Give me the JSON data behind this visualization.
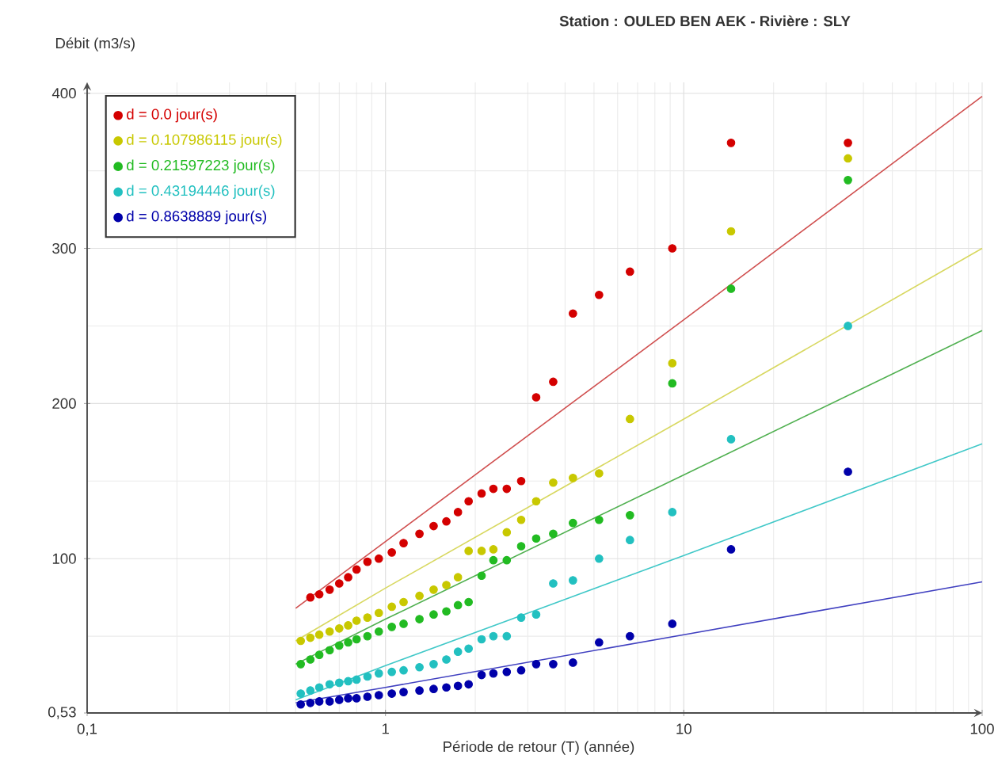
{
  "chart_data": {
    "type": "scatter",
    "title": "Station : OULED BEN AEK - Rivière : SLY",
    "xlabel": "Période de retour (T) (année)",
    "ylabel": "Débit (m3/s)",
    "log": "x",
    "xlim": [
      0.1,
      100
    ],
    "ylim": [
      0.53,
      407
    ],
    "xticks": [
      {
        "value": 0.1,
        "label": "0,1"
      },
      1,
      10,
      100
    ],
    "yticks": [
      {
        "value": 0.53,
        "label": "0,53"
      },
      100,
      200,
      300,
      400
    ],
    "grid": true,
    "legend": "top left",
    "marker": "circle",
    "x": [
      0.52,
      0.56,
      0.6,
      0.65,
      0.7,
      0.75,
      0.8,
      0.87,
      0.95,
      1.05,
      1.15,
      1.3,
      1.45,
      1.6,
      1.75,
      1.9,
      2.1,
      2.3,
      2.55,
      2.85,
      3.2,
      3.65,
      4.25,
      5.2,
      6.6,
      9.15,
      14.4,
      35.5
    ],
    "series": [
      {
        "name": "d = 0.0 jour(s)",
        "color": "#d40000",
        "values": [
          null,
          75,
          77,
          80,
          84,
          88,
          93,
          98,
          100,
          104,
          110,
          116,
          121,
          124,
          130,
          137,
          142,
          145,
          145,
          150,
          204,
          214,
          258,
          270,
          285,
          300,
          368,
          368
        ]
      },
      {
        "name": "d = 0.107986115 jour(s)",
        "color": "#c8c800",
        "values": [
          47,
          49,
          51,
          53,
          55,
          57,
          60,
          62,
          65,
          69,
          72,
          76,
          80,
          83,
          88,
          105,
          105,
          106,
          117,
          125,
          137,
          149,
          152,
          155,
          190,
          226,
          311,
          358
        ]
      },
      {
        "name": "d = 0.21597223 jour(s)",
        "color": "#22bb22",
        "values": [
          32,
          35,
          38,
          41,
          44,
          46,
          48,
          50,
          53,
          56,
          58,
          61,
          64,
          66,
          70,
          72,
          89,
          99,
          99,
          108,
          113,
          116,
          123,
          125,
          128,
          213,
          274,
          344
        ]
      },
      {
        "name": "d = 0.43194446 jour(s)",
        "color": "#22c0c0",
        "values": [
          13,
          15,
          17,
          19,
          20,
          21,
          22,
          24,
          26,
          27,
          28,
          30,
          32,
          35,
          40,
          42,
          48,
          50,
          50,
          62,
          64,
          84,
          86,
          100,
          112,
          130,
          177,
          250
        ]
      },
      {
        "name": "d = 0.8638889 jour(s)",
        "color": "#0000aa",
        "values": [
          6,
          7,
          8,
          8,
          9,
          10,
          10,
          11,
          12,
          13,
          14,
          15,
          16,
          17,
          18,
          19,
          25,
          26,
          27,
          28,
          32,
          32,
          33,
          46,
          50,
          58,
          106,
          156
        ]
      },
      {
        "type": "line",
        "marker": "none",
        "color": "#d05050",
        "x": [
          0.5,
          1,
          10,
          100
        ],
        "values": [
          68,
          111,
          254,
          398
        ]
      },
      {
        "type": "line",
        "marker": "none",
        "color": "#d8d860",
        "x": [
          0.5,
          1,
          10,
          100
        ],
        "values": [
          47,
          81,
          190,
          300
        ]
      },
      {
        "type": "line",
        "marker": "none",
        "color": "#50b050",
        "x": [
          0.5,
          1,
          10,
          100
        ],
        "values": [
          32,
          61,
          154,
          247
        ]
      },
      {
        "type": "line",
        "marker": "none",
        "color": "#40c8c8",
        "x": [
          0.5,
          1,
          10,
          100
        ],
        "values": [
          9,
          31,
          102,
          174
        ]
      },
      {
        "type": "line",
        "marker": "none",
        "color": "#4040c0",
        "x": [
          0.5,
          1,
          10,
          100
        ],
        "values": [
          7,
          17,
          51,
          85
        ]
      }
    ]
  }
}
